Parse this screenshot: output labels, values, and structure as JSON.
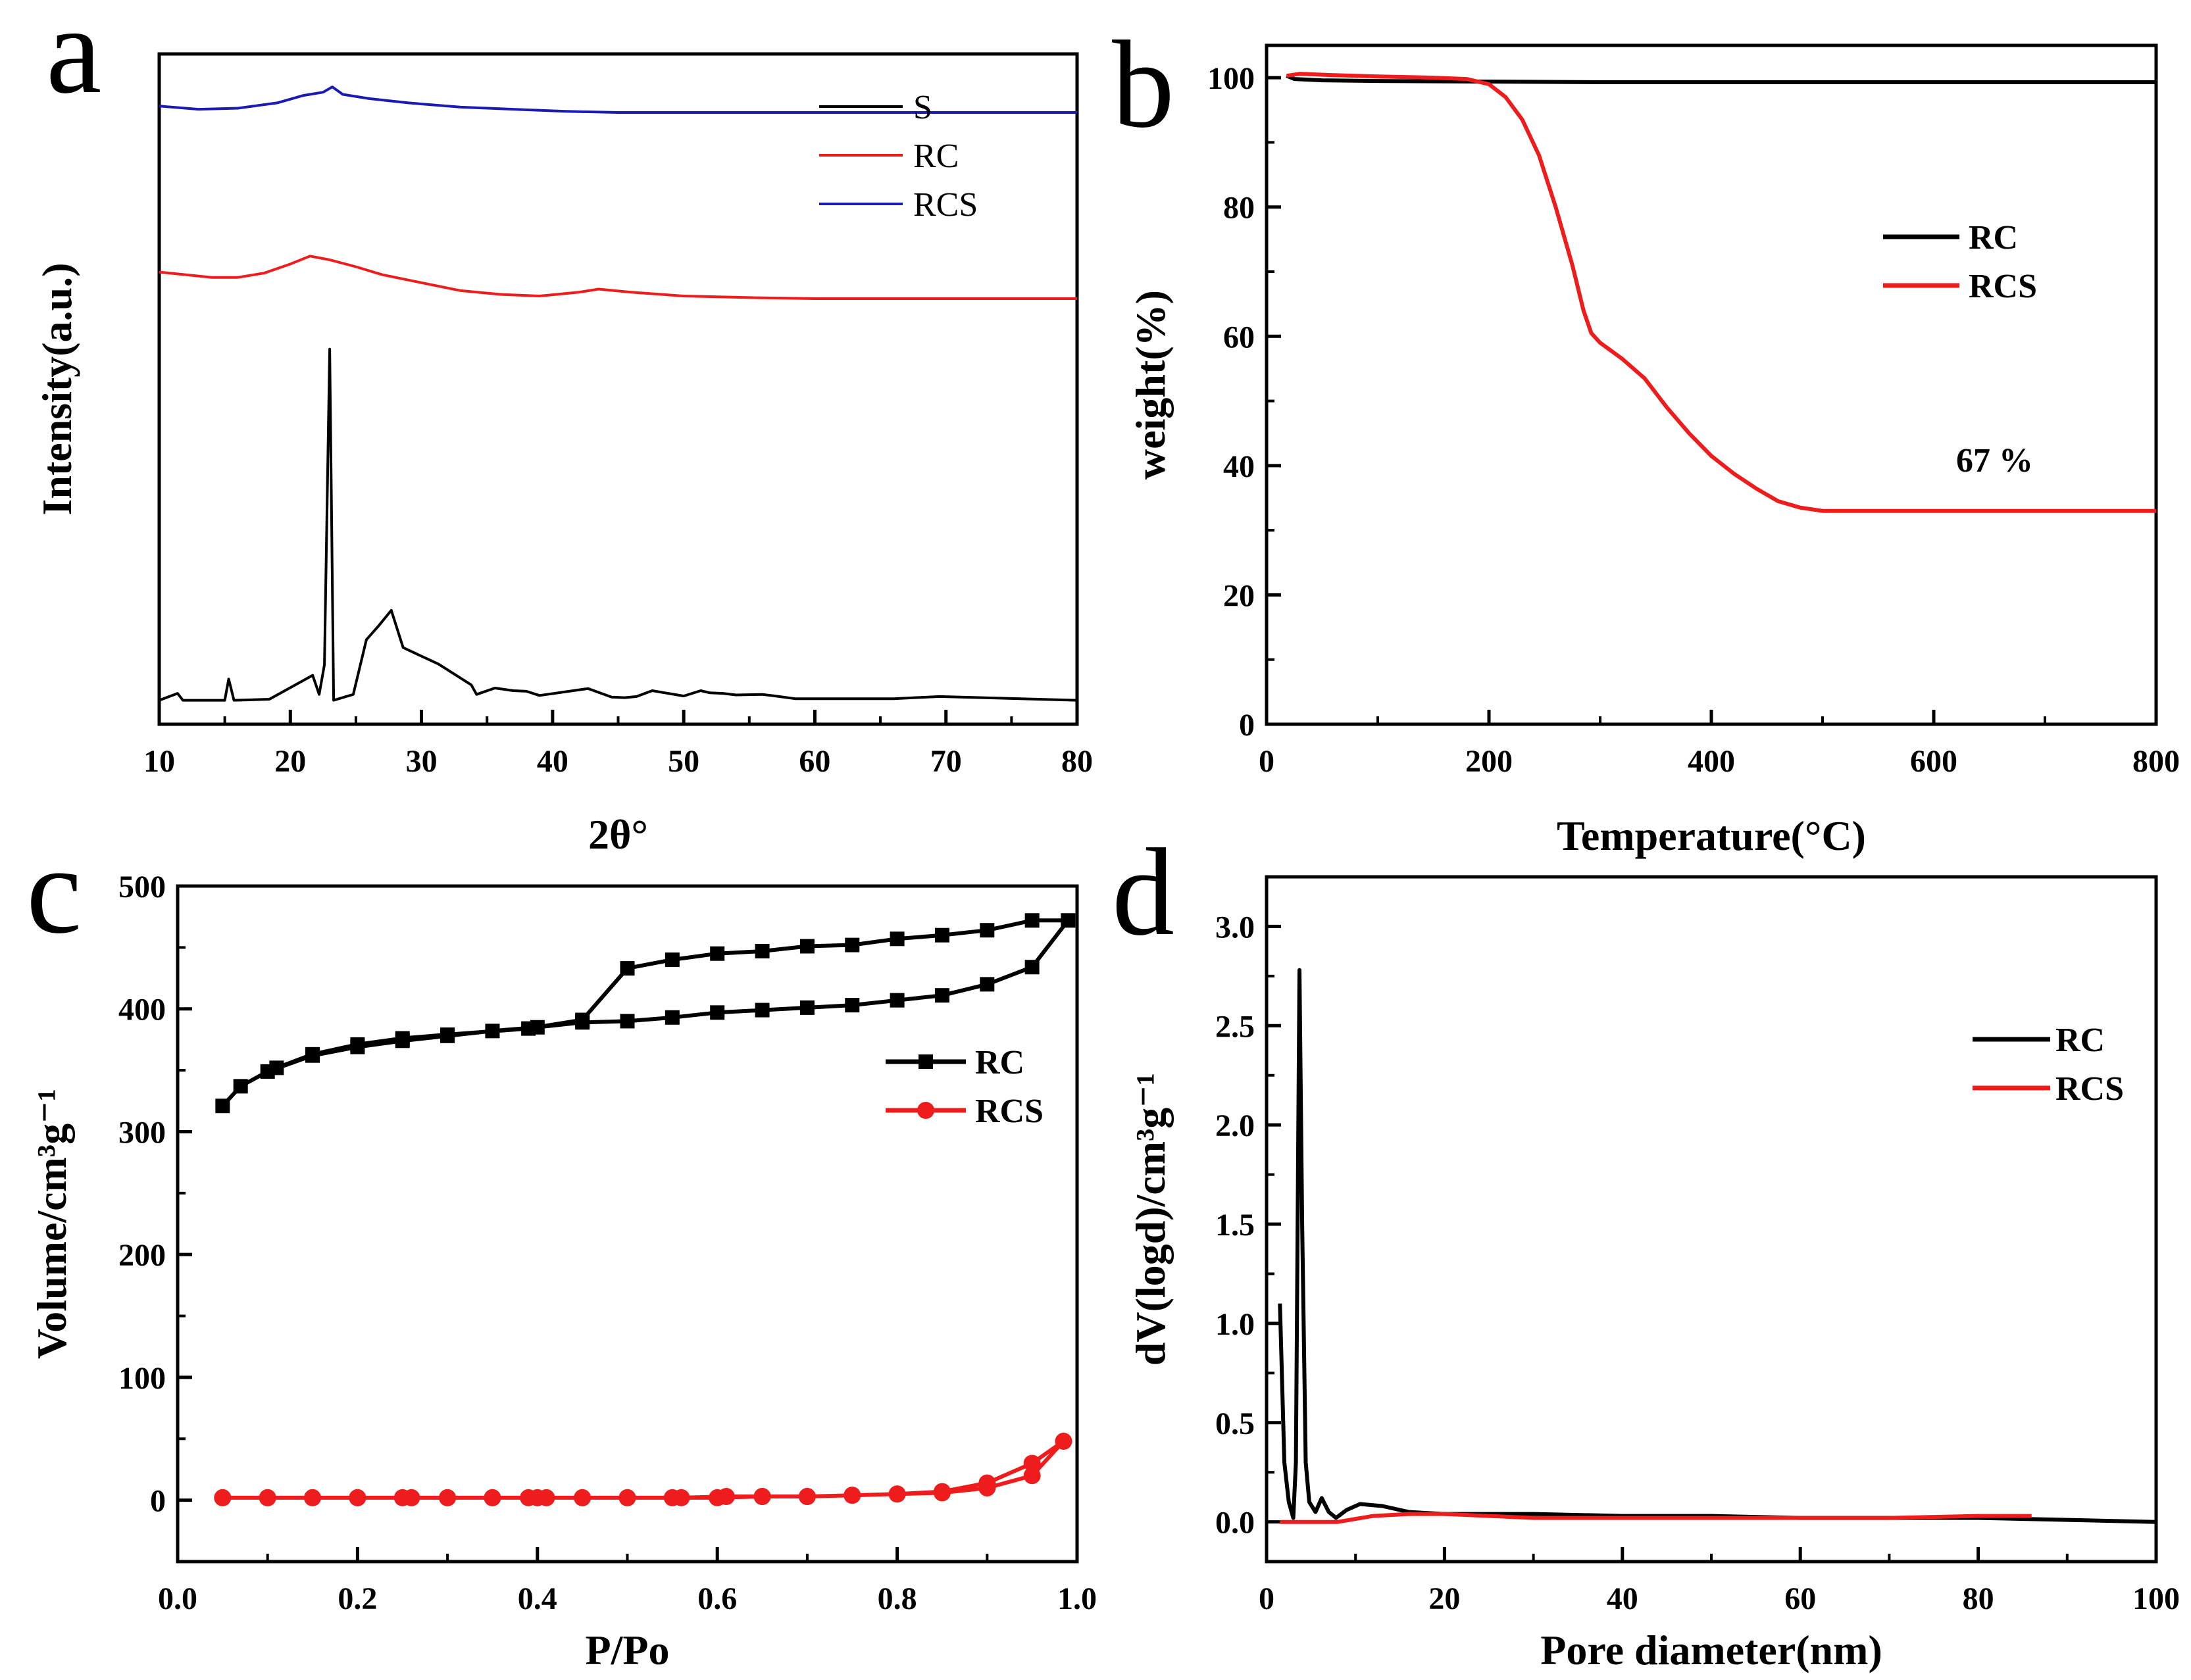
{
  "colors": {
    "black": "#000000",
    "red": "#ee1c1c",
    "blue": "#1a1ab4"
  },
  "chart_data": [
    {
      "panel": "a",
      "type": "line",
      "xlabel": "2θ°",
      "ylabel": "Intensity(a.u.)",
      "xlim": [
        10,
        80
      ],
      "xticks": [
        10,
        20,
        30,
        40,
        50,
        60,
        70,
        80
      ],
      "yticks": [],
      "legend": "top-right",
      "series": [
        {
          "name": "S",
          "color": "#000000",
          "x": [
            10,
            11.4,
            11.8,
            15.0,
            15.3,
            15.7,
            18.4,
            21.7,
            22.2,
            22.6,
            23.0,
            23.3,
            24.8,
            25.8,
            26.7,
            27.7,
            28.6,
            31.3,
            33.8,
            34.2,
            35.6,
            37.0,
            38.0,
            39.0,
            42.7,
            44.5,
            45.5,
            46.4,
            47.6,
            50.0,
            51.3,
            52.0,
            53.0,
            54.0,
            56.0,
            57.0,
            58.5,
            62.0,
            65.0,
            66.0,
            69.5,
            80
          ],
          "y": [
            45,
            58,
            45,
            45,
            85,
            45,
            47,
            92,
            56,
            112,
            705,
            45,
            56,
            159,
            184,
            214,
            144,
            113,
            74,
            56,
            68,
            63,
            62,
            54,
            67,
            51,
            50,
            52,
            63,
            53,
            63,
            59,
            58,
            55,
            56,
            53,
            48,
            48,
            48,
            48,
            52,
            45
          ]
        },
        {
          "name": "RC",
          "color": "#ee1c1c",
          "x": [
            10,
            12,
            14,
            16,
            18,
            20,
            21.5,
            23,
            25,
            27,
            30,
            33,
            36,
            39,
            42,
            43.5,
            46,
            50,
            55,
            60,
            65,
            70,
            75,
            80
          ],
          "y": [
            850,
            845,
            840,
            840,
            848,
            865,
            880,
            873,
            860,
            845,
            830,
            815,
            808,
            805,
            812,
            818,
            812,
            805,
            802,
            800,
            800,
            800,
            800,
            800
          ]
        },
        {
          "name": "RCS",
          "color": "#1a1ab4",
          "x": [
            10,
            13,
            16,
            19,
            21,
            22.5,
            23.2,
            24,
            26,
            29,
            33,
            37,
            41,
            45,
            50,
            55,
            60,
            65,
            70,
            75,
            80
          ],
          "y": [
            1162,
            1156,
            1158,
            1168,
            1182,
            1188,
            1198,
            1184,
            1176,
            1168,
            1160,
            1156,
            1152,
            1150,
            1150,
            1150,
            1150,
            1150,
            1150,
            1150,
            1150
          ]
        }
      ]
    },
    {
      "panel": "b",
      "type": "line",
      "xlabel": "Temperature(°C)",
      "ylabel": "weight(%)",
      "xlim": [
        0,
        800
      ],
      "ylim": [
        0,
        105
      ],
      "xticks": [
        0,
        200,
        400,
        600,
        800
      ],
      "yticks": [
        0,
        20,
        40,
        60,
        80,
        100
      ],
      "legend": "right",
      "annotations": [
        {
          "text": "67 %",
          "x": 660,
          "y": 40
        }
      ],
      "series": [
        {
          "name": "RC",
          "color": "#000000",
          "x": [
            18,
            25,
            50,
            100,
            200,
            300,
            400,
            500,
            600,
            700,
            800
          ],
          "y": [
            100.3,
            99.8,
            99.6,
            99.5,
            99.4,
            99.3,
            99.3,
            99.3,
            99.3,
            99.3,
            99.3
          ]
        },
        {
          "name": "RCS",
          "color": "#ee1c1c",
          "x": [
            18,
            30,
            60,
            100,
            150,
            180,
            200,
            215,
            230,
            245,
            260,
            275,
            285,
            292,
            300,
            320,
            340,
            360,
            380,
            400,
            420,
            440,
            460,
            480,
            500,
            550,
            600,
            700,
            800
          ],
          "y": [
            100.3,
            100.6,
            100.4,
            100.2,
            100.0,
            99.8,
            99.0,
            97.0,
            93.5,
            88.0,
            80.0,
            71.0,
            64.0,
            60.5,
            59.0,
            56.5,
            53.5,
            49.0,
            45.0,
            41.5,
            38.8,
            36.5,
            34.5,
            33.5,
            33.0,
            33.0,
            33.0,
            33.0,
            33.0
          ]
        }
      ]
    },
    {
      "panel": "c",
      "type": "line",
      "xlabel": "P/Po",
      "ylabel": "Volume/cm³g⁻¹",
      "xlim": [
        0.0,
        1.0
      ],
      "ylim": [
        -50,
        500
      ],
      "xticks": [
        0.0,
        0.2,
        0.4,
        0.6,
        0.8,
        1.0
      ],
      "yticks": [
        0,
        100,
        200,
        300,
        400,
        500
      ],
      "legend": "right",
      "series": [
        {
          "name": "RC",
          "color": "#000000",
          "marker": "square",
          "x": [
            0.05,
            0.07,
            0.1,
            0.15,
            0.2,
            0.25,
            0.3,
            0.35,
            0.4,
            0.45,
            0.5,
            0.55,
            0.6,
            0.65,
            0.7,
            0.75,
            0.8,
            0.85,
            0.9,
            0.95,
            0.99,
            0.95,
            0.9,
            0.85,
            0.8,
            0.75,
            0.7,
            0.65,
            0.6,
            0.55,
            0.5,
            0.45,
            0.39,
            0.3,
            0.25,
            0.2,
            0.15,
            0.11
          ],
          "y": [
            321,
            337,
            349,
            362,
            369,
            374,
            378,
            382,
            385,
            389,
            390,
            393,
            397,
            399,
            401,
            403,
            407,
            411,
            420,
            434,
            472,
            472,
            464,
            460,
            457,
            452,
            451,
            447,
            445,
            440,
            433,
            391,
            384,
            379,
            376,
            371,
            363,
            352
          ]
        },
        {
          "name": "RCS",
          "color": "#ee1c1c",
          "marker": "circle",
          "x": [
            0.05,
            0.1,
            0.15,
            0.2,
            0.25,
            0.3,
            0.35,
            0.39,
            0.41,
            0.45,
            0.5,
            0.55,
            0.6,
            0.65,
            0.7,
            0.75,
            0.8,
            0.85,
            0.9,
            0.95,
            0.985,
            0.95,
            0.9,
            0.85,
            0.8,
            0.75,
            0.7,
            0.65,
            0.61,
            0.56,
            0.5,
            0.45,
            0.4,
            0.35,
            0.3,
            0.26,
            0.2,
            0.15,
            0.1,
            0.05
          ],
          "y": [
            2,
            2,
            2,
            2,
            2,
            2,
            2,
            2,
            2,
            2,
            2,
            2,
            2,
            3,
            3,
            4,
            5,
            6,
            10,
            20,
            48,
            30,
            14,
            7,
            5,
            4,
            3,
            3,
            3,
            2,
            2,
            2,
            2,
            2,
            2,
            2,
            2,
            2,
            2,
            2
          ]
        }
      ]
    },
    {
      "panel": "d",
      "type": "line",
      "xlabel": "Pore diameter(nm)",
      "ylabel": "dV(logd)/cm³g⁻¹",
      "xlim": [
        0,
        100
      ],
      "ylim": [
        -0.2,
        3.25
      ],
      "xticks": [
        0,
        20,
        40,
        60,
        80,
        100
      ],
      "yticks": [
        0.0,
        0.5,
        1.0,
        1.5,
        2.0,
        2.5,
        3.0
      ],
      "legend": "top-right",
      "series": [
        {
          "name": "RC",
          "color": "#000000",
          "x": [
            1.5,
            2.0,
            2.5,
            3.0,
            3.3,
            3.7,
            4.0,
            4.4,
            4.8,
            5.5,
            6.2,
            7.0,
            7.8,
            9.0,
            10.5,
            13,
            16,
            20,
            30,
            40,
            50,
            60,
            70,
            80,
            90,
            100
          ],
          "y": [
            1.1,
            0.3,
            0.1,
            0.02,
            0.3,
            2.78,
            1.5,
            0.3,
            0.1,
            0.05,
            0.12,
            0.05,
            0.02,
            0.06,
            0.09,
            0.08,
            0.05,
            0.04,
            0.04,
            0.03,
            0.03,
            0.02,
            0.02,
            0.02,
            0.01,
            0.0
          ]
        },
        {
          "name": "RCS",
          "color": "#ee1c1c",
          "x": [
            1.5,
            4,
            8,
            12,
            16,
            20,
            25,
            30,
            40,
            50,
            60,
            70,
            80,
            86
          ],
          "y": [
            0.0,
            0.0,
            0.0,
            0.03,
            0.04,
            0.04,
            0.03,
            0.02,
            0.02,
            0.02,
            0.02,
            0.02,
            0.03,
            0.03
          ]
        }
      ]
    }
  ]
}
